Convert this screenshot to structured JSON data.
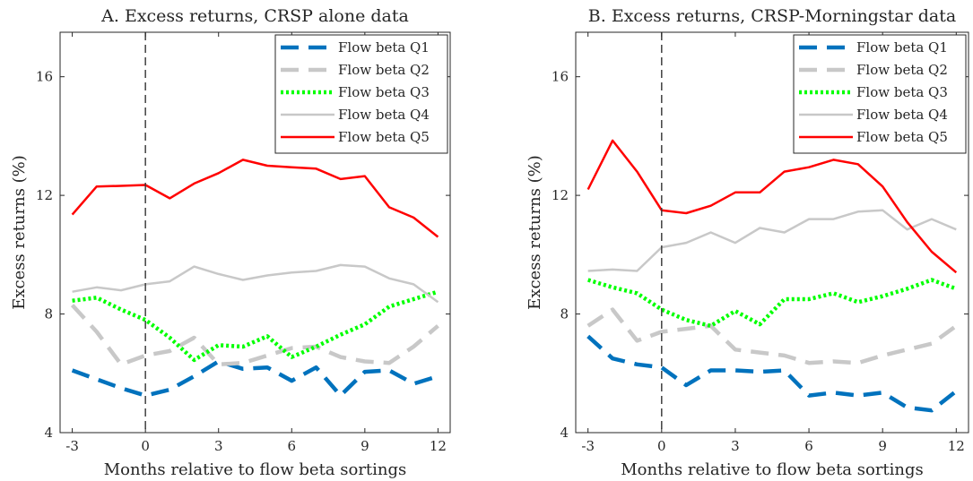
{
  "chart_data": [
    {
      "type": "line",
      "title": "A. Excess returns, CRSP alone data",
      "xlabel": "Months relative to flow beta sortings",
      "ylabel": "Excess returns (%)",
      "xlim": [
        -3.5,
        12.5
      ],
      "ylim": [
        4,
        17.5
      ],
      "xticks": [
        "-3",
        "0",
        "3",
        "6",
        "9",
        "12"
      ],
      "yticks": [
        "4",
        "8",
        "12",
        "16"
      ],
      "vline_x": 0,
      "grid": false,
      "legend_position": "top-right",
      "x": [
        -3,
        -2,
        -1,
        0,
        1,
        2,
        3,
        4,
        5,
        6,
        7,
        8,
        9,
        10,
        11,
        12
      ],
      "series": [
        {
          "name": "Flow beta Q1",
          "color": "#0072BD",
          "style": "dashed",
          "values": [
            6.1,
            5.8,
            5.5,
            5.25,
            5.45,
            5.9,
            6.4,
            6.15,
            6.2,
            5.75,
            6.2,
            5.25,
            6.05,
            6.1,
            5.65,
            5.9
          ]
        },
        {
          "name": "Flow beta Q2",
          "color": "#C8C8C8",
          "style": "dashed",
          "values": [
            8.3,
            7.4,
            6.3,
            6.6,
            6.75,
            7.2,
            6.3,
            6.35,
            6.6,
            6.85,
            6.9,
            6.55,
            6.4,
            6.35,
            6.9,
            7.6
          ]
        },
        {
          "name": "Flow beta Q3",
          "color": "#00FF00",
          "style": "dotted",
          "values": [
            8.45,
            8.55,
            8.15,
            7.8,
            7.2,
            6.45,
            6.95,
            6.9,
            7.25,
            6.55,
            6.9,
            7.3,
            7.65,
            8.25,
            8.5,
            8.75
          ]
        },
        {
          "name": "Flow beta Q4",
          "color": "#C8C8C8",
          "style": "solid",
          "values": [
            8.75,
            8.9,
            8.8,
            9.0,
            9.1,
            9.6,
            9.35,
            9.15,
            9.3,
            9.4,
            9.45,
            9.65,
            9.6,
            9.2,
            9.0,
            8.4
          ]
        },
        {
          "name": "Flow beta Q5",
          "color": "#FF0000",
          "style": "solid",
          "values": [
            11.35,
            12.3,
            12.32,
            12.35,
            11.9,
            12.4,
            12.75,
            13.2,
            13.0,
            12.95,
            12.9,
            12.55,
            12.65,
            11.6,
            11.25,
            10.6
          ]
        }
      ]
    },
    {
      "type": "line",
      "title": "B. Excess returns, CRSP-Morningstar data",
      "xlabel": "Months relative to flow beta sortings",
      "ylabel": "Excess returns (%)",
      "xlim": [
        -3.5,
        12.5
      ],
      "ylim": [
        4,
        17.5
      ],
      "xticks": [
        "-3",
        "0",
        "3",
        "6",
        "9",
        "12"
      ],
      "yticks": [
        "4",
        "8",
        "12",
        "16"
      ],
      "vline_x": 0,
      "grid": false,
      "legend_position": "top-right",
      "x": [
        -3,
        -2,
        -1,
        0,
        1,
        2,
        3,
        4,
        5,
        6,
        7,
        8,
        9,
        10,
        11,
        12
      ],
      "series": [
        {
          "name": "Flow beta Q1",
          "color": "#0072BD",
          "style": "dashed",
          "values": [
            7.25,
            6.5,
            6.3,
            6.2,
            5.6,
            6.1,
            6.1,
            6.05,
            6.1,
            5.25,
            5.35,
            5.25,
            5.35,
            4.85,
            4.75,
            5.4
          ]
        },
        {
          "name": "Flow beta Q2",
          "color": "#C8C8C8",
          "style": "dashed",
          "values": [
            7.6,
            8.15,
            7.1,
            7.4,
            7.5,
            7.6,
            6.8,
            6.7,
            6.6,
            6.35,
            6.4,
            6.35,
            6.6,
            6.8,
            7.0,
            7.6
          ]
        },
        {
          "name": "Flow beta Q3",
          "color": "#00FF00",
          "style": "dotted",
          "values": [
            9.15,
            8.9,
            8.7,
            8.15,
            7.8,
            7.6,
            8.1,
            7.65,
            8.5,
            8.5,
            8.7,
            8.4,
            8.6,
            8.85,
            9.15,
            8.85
          ]
        },
        {
          "name": "Flow beta Q4",
          "color": "#C8C8C8",
          "style": "solid",
          "values": [
            9.45,
            9.5,
            9.45,
            10.25,
            10.4,
            10.75,
            10.4,
            10.9,
            10.75,
            11.2,
            11.2,
            11.45,
            11.5,
            10.85,
            11.2,
            10.85
          ]
        },
        {
          "name": "Flow beta Q5",
          "color": "#FF0000",
          "style": "solid",
          "values": [
            12.2,
            13.85,
            12.8,
            11.5,
            11.4,
            11.65,
            12.1,
            12.1,
            12.8,
            12.95,
            13.2,
            13.05,
            12.3,
            11.1,
            10.1,
            9.4
          ]
        }
      ]
    }
  ]
}
